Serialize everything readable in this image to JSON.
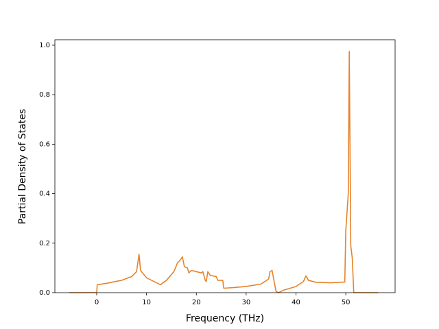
{
  "chart_data": {
    "type": "line",
    "x_label": "Frequency (THz)",
    "y_label": "Partial Density of States",
    "x": [
      -5.5,
      0,
      0.1,
      2,
      5,
      7,
      8,
      8.5,
      8.8,
      10,
      12,
      12.8,
      14,
      15.5,
      16.2,
      16.7,
      17.2,
      17.6,
      18.2,
      18.5,
      19,
      20,
      21,
      21.3,
      21.8,
      22,
      22.3,
      22.8,
      24,
      24.3,
      25.3,
      25.5,
      27,
      30,
      33,
      34.5,
      34.8,
      35.2,
      36,
      36.5,
      37.5,
      40,
      41.5,
      42,
      42.5,
      44,
      47,
      49.8,
      50,
      50.5,
      50.7,
      51,
      51.3,
      51.6,
      56.5
    ],
    "series": [
      {
        "color": "#e6832a",
        "values": [
          0,
          0,
          0.032,
          0.038,
          0.05,
          0.065,
          0.085,
          0.155,
          0.09,
          0.06,
          0.04,
          0.032,
          0.05,
          0.085,
          0.12,
          0.13,
          0.145,
          0.105,
          0.1,
          0.08,
          0.09,
          0.085,
          0.08,
          0.085,
          0.05,
          0.045,
          0.085,
          0.07,
          0.065,
          0.05,
          0.05,
          0.018,
          0.02,
          0.025,
          0.035,
          0.055,
          0.085,
          0.09,
          0.005,
          0,
          0.01,
          0.025,
          0.045,
          0.068,
          0.05,
          0.042,
          0.04,
          0.043,
          0.25,
          0.4,
          0.975,
          0.19,
          0.14,
          0,
          0
        ]
      }
    ],
    "xlim": [
      -8.4,
      59.9
    ],
    "ylim": [
      0,
      1.022
    ],
    "xticks": [
      0,
      10,
      20,
      30,
      40,
      50
    ],
    "yticks": [
      {
        "value": 0,
        "label": "0.0"
      },
      0.2,
      0.4,
      0.6,
      0.8,
      {
        "value": 1,
        "label": "1.0"
      }
    ]
  }
}
